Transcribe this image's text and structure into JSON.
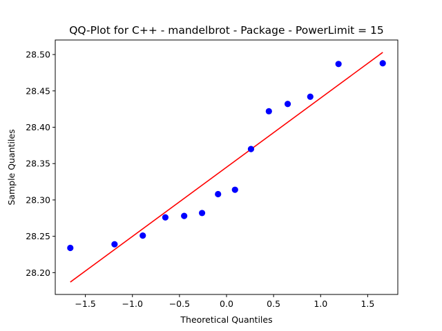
{
  "chart_data": {
    "type": "scatter",
    "title": "QQ-Plot for C++ - mandelbrot - Package - PowerLimit = 15",
    "xlabel": "Theoretical Quantiles",
    "ylabel": "Sample Quantiles",
    "xlim": [
      -1.82,
      1.82
    ],
    "ylim": [
      28.17,
      28.52
    ],
    "x_ticks": [
      -1.5,
      -1.0,
      -0.5,
      0.0,
      0.5,
      1.0,
      1.5
    ],
    "x_tick_labels": [
      "−1.5",
      "−1.0",
      "−0.5",
      "0.0",
      "0.5",
      "1.0",
      "1.5"
    ],
    "y_ticks": [
      28.2,
      28.25,
      28.3,
      28.35,
      28.4,
      28.45,
      28.5
    ],
    "y_tick_labels": [
      "28.20",
      "28.25",
      "28.30",
      "28.35",
      "28.40",
      "28.45",
      "28.50"
    ],
    "grid": false,
    "points": {
      "color": "#0000ff",
      "x": [
        -1.66,
        -1.19,
        -0.89,
        -0.65,
        -0.45,
        -0.26,
        -0.09,
        0.09,
        0.26,
        0.45,
        0.65,
        0.89,
        1.19,
        1.66
      ],
      "y": [
        28.234,
        28.239,
        28.251,
        28.276,
        28.278,
        28.282,
        28.308,
        28.314,
        28.37,
        28.422,
        28.432,
        28.442,
        28.487,
        28.488
      ]
    },
    "reference_line": {
      "color": "#ff0000",
      "x": [
        -1.66,
        1.66
      ],
      "y": [
        28.187,
        28.503
      ]
    }
  }
}
